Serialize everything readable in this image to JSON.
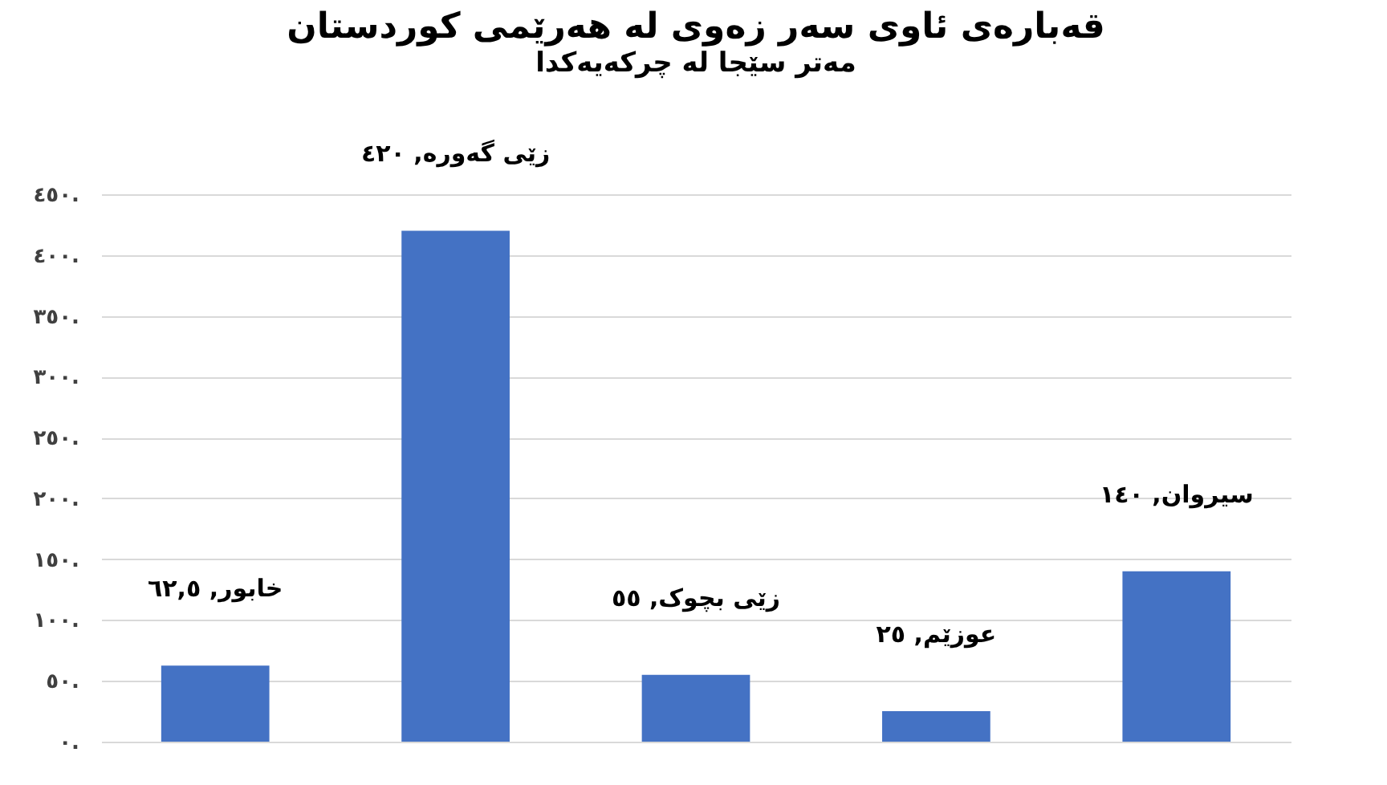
{
  "chart_data": {
    "type": "bar",
    "title": "قەبارەی ئاوی سەر زەوی لە هەرێمی کوردستان",
    "subtitle": "مەتر سێجا لە چرکەیەکدا",
    "categories": [
      null,
      null,
      null,
      null,
      null
    ],
    "values": [
      62.5,
      420,
      55,
      25,
      140
    ],
    "value_labels": [
      "خابور, ٦٢,٥",
      "زێی گەورە, ٤٢٠",
      "زێی بچوک, ٥٥",
      "عوزێم, ٢٥",
      "سیروان, ١٤٠"
    ],
    "color": "#4472c4",
    "ylim": [
      0,
      450
    ],
    "yticks": [
      {
        "value": 0,
        "label": "٠."
      },
      {
        "value": 50,
        "label": "٥٠."
      },
      {
        "value": 100,
        "label": "١٠٠."
      },
      {
        "value": 150,
        "label": "١٥٠."
      },
      {
        "value": 200,
        "label": "٢٠٠."
      },
      {
        "value": 250,
        "label": "٢٥٠."
      },
      {
        "value": 300,
        "label": "٣٠٠."
      },
      {
        "value": 350,
        "label": "٣٥٠."
      },
      {
        "value": 400,
        "label": "٤٠٠."
      },
      {
        "value": 450,
        "label": "٤٥٠."
      }
    ],
    "grid": "y",
    "tick_labels": "y"
  }
}
